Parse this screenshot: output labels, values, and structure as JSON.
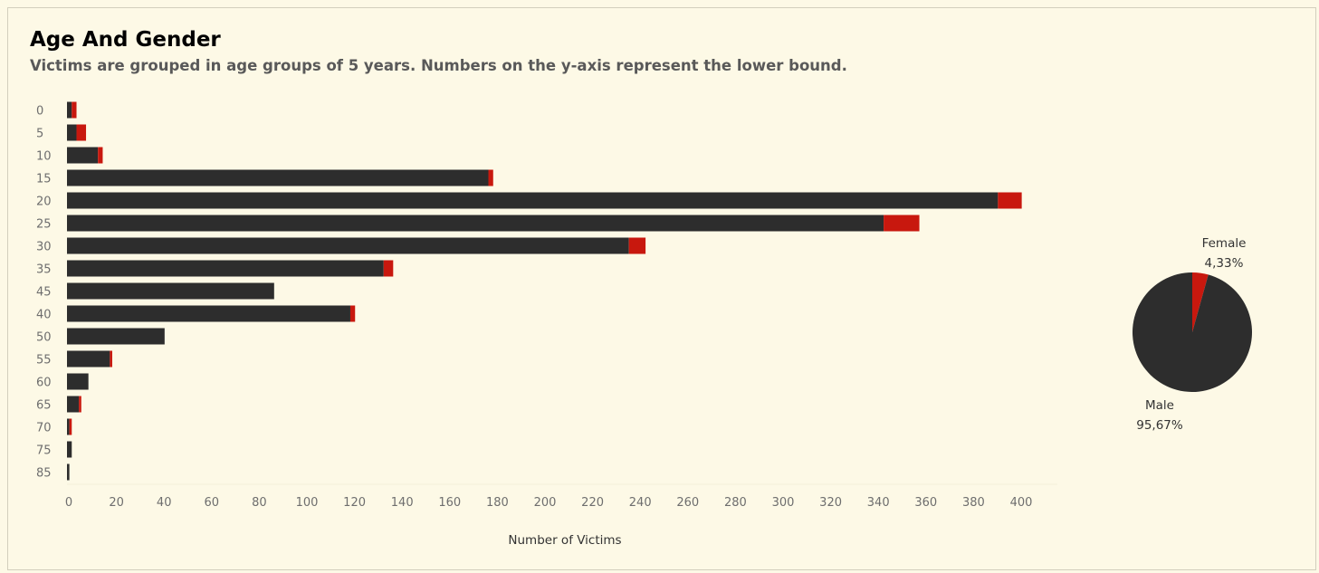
{
  "title": "Age And Gender",
  "subtitle": "Victims are grouped in age groups of 5 years. Numbers on the y-axis represent the lower bound.",
  "colors": {
    "background": "#fdf9e6",
    "male": "#2d2d2d",
    "female": "#c8180e",
    "tick_text": "#6e6e6e",
    "title": "#000000",
    "subtitle": "#595959"
  },
  "chart_data": [
    {
      "type": "bar",
      "orientation": "horizontal",
      "stacked": true,
      "categories": [
        "0",
        "5",
        "10",
        "15",
        "20",
        "25",
        "30",
        "35",
        "45",
        "40",
        "50",
        "55",
        "60",
        "65",
        "70",
        "75",
        "85"
      ],
      "series": [
        {
          "name": "Male",
          "color": "#2d2d2d",
          "values": [
            2,
            4,
            13,
            177,
            391,
            343,
            236,
            133,
            87,
            119,
            41,
            18,
            9,
            5,
            1,
            2,
            1
          ]
        },
        {
          "name": "Female",
          "color": "#c8180e",
          "values": [
            2,
            4,
            2,
            2,
            10,
            15,
            7,
            4,
            0,
            2,
            0,
            1,
            0,
            1,
            1,
            0,
            0
          ]
        }
      ],
      "xlabel": "Number of Victims",
      "ylabel": "",
      "xlim": [
        0,
        410
      ],
      "xticks": [
        0,
        20,
        40,
        60,
        80,
        100,
        120,
        140,
        160,
        180,
        200,
        220,
        240,
        260,
        280,
        300,
        320,
        340,
        360,
        380,
        400
      ],
      "grid": false,
      "legend": "none"
    },
    {
      "type": "pie",
      "slices": [
        {
          "name": "Female",
          "value": 4.33,
          "label": "4,33%",
          "color": "#c8180e"
        },
        {
          "name": "Male",
          "value": 95.67,
          "label": "95,67%",
          "color": "#2d2d2d"
        }
      ]
    }
  ]
}
